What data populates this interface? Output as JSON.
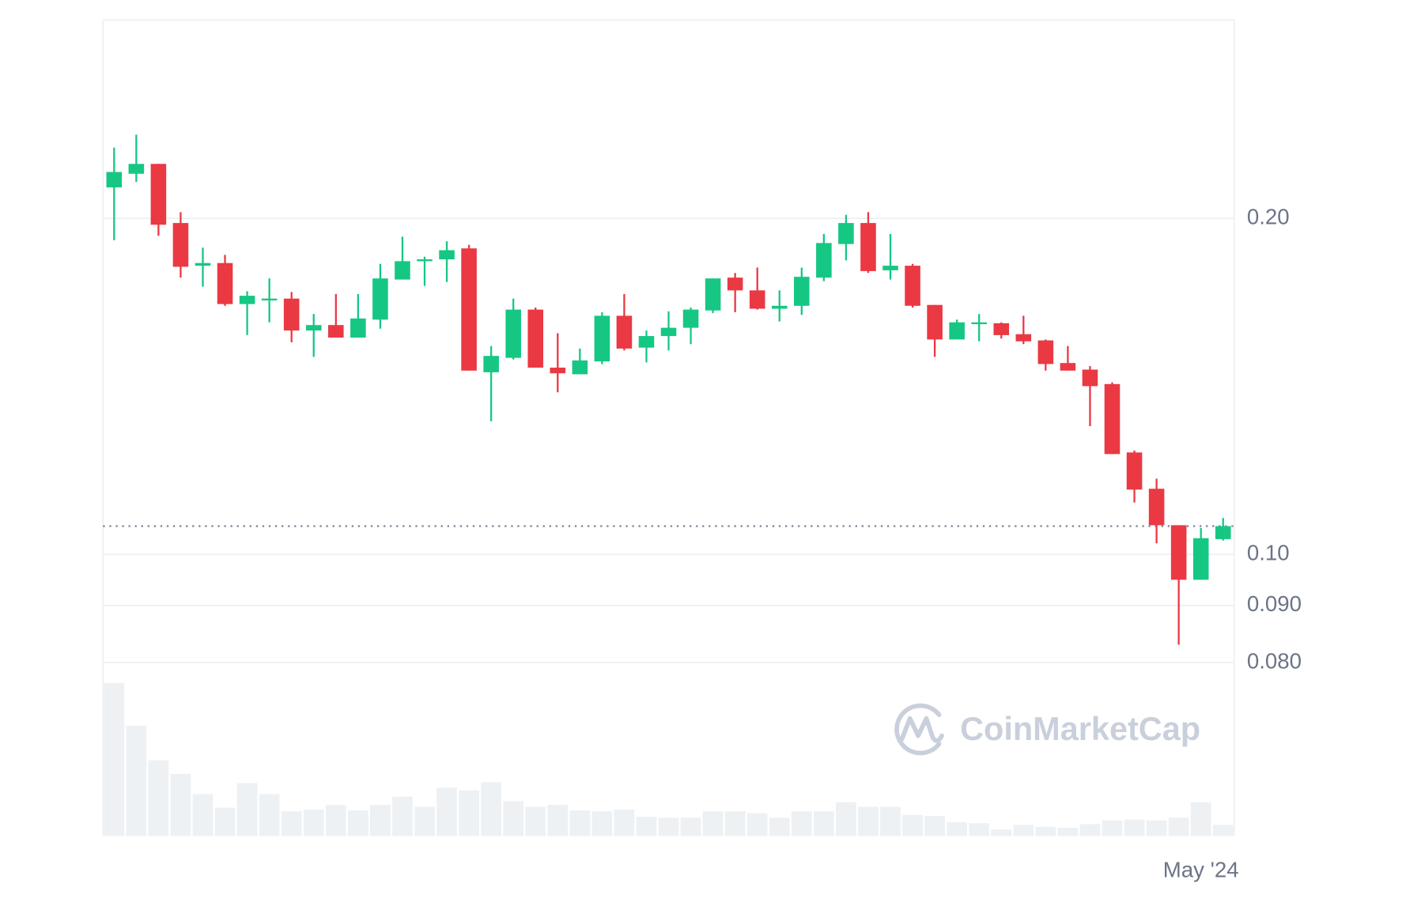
{
  "chart_data": {
    "type": "candlestick",
    "log_scale": true,
    "grid": true,
    "up_color": "#16c784",
    "down_color": "#ea3943",
    "watermark": "CoinMarketCap",
    "ylim": [
      0.075,
      0.3
    ],
    "yticks": [
      {
        "value": 0.2,
        "label": "0.20"
      },
      {
        "value": 0.1,
        "label": "0.10"
      },
      {
        "value": 0.09,
        "label": "0.090"
      },
      {
        "value": 0.08,
        "label": "0.080"
      }
    ],
    "categories": [
      null,
      null,
      null,
      null,
      null,
      null,
      null,
      null,
      null,
      null,
      null,
      null,
      null,
      null,
      null,
      null,
      null,
      null,
      null,
      null,
      null,
      null,
      null,
      null,
      null,
      null,
      null,
      null,
      null,
      null,
      null,
      null,
      null,
      null,
      null,
      null,
      null,
      null,
      null,
      null,
      null,
      null,
      null,
      null,
      null,
      null,
      null,
      null,
      null,
      "May '24",
      null
    ],
    "open": [
      0.2132,
      0.2193,
      0.2238,
      0.1981,
      0.1814,
      0.1824,
      0.1676,
      0.1695,
      0.1695,
      0.1587,
      0.1605,
      0.1564,
      0.1623,
      0.1763,
      0.1831,
      0.1838,
      0.188,
      0.1456,
      0.15,
      0.1657,
      0.147,
      0.145,
      0.1489,
      0.1636,
      0.1532,
      0.1569,
      0.1596,
      0.1654,
      0.177,
      0.1724,
      0.166,
      0.167,
      0.177,
      0.1897,
      0.1981,
      0.1797,
      0.1814,
      0.1673,
      0.1558,
      0.1611,
      0.1611,
      0.1575,
      0.1555,
      0.1484,
      0.1464,
      0.1421,
      0.1234,
      0.1145,
      0.1062,
      0.0949,
      0.1032
    ],
    "high": [
      0.2315,
      0.2377,
      0.2238,
      0.2026,
      0.1883,
      0.1855,
      0.1721,
      0.1767,
      0.1718,
      0.1642,
      0.1711,
      0.1711,
      0.1821,
      0.1926,
      0.1848,
      0.1908,
      0.1894,
      0.1537,
      0.1695,
      0.1664,
      0.1578,
      0.1529,
      0.1648,
      0.1711,
      0.1587,
      0.1651,
      0.1664,
      0.1767,
      0.1787,
      0.1807,
      0.1724,
      0.1807,
      0.1937,
      0.2015,
      0.2026,
      0.1937,
      0.1821,
      0.1673,
      0.1623,
      0.1642,
      0.1614,
      0.1636,
      0.1558,
      0.1537,
      0.1475,
      0.1426,
      0.1239,
      0.1169,
      0.1062,
      0.1056,
      0.1078
    ],
    "low": [
      0.1912,
      0.2156,
      0.193,
      0.177,
      0.1737,
      0.167,
      0.1572,
      0.1614,
      0.1549,
      0.1503,
      0.1564,
      0.1564,
      0.1593,
      0.1763,
      0.174,
      0.1754,
      0.1461,
      0.1316,
      0.1495,
      0.147,
      0.1397,
      0.145,
      0.1481,
      0.1523,
      0.1486,
      0.1523,
      0.1543,
      0.1645,
      0.1648,
      0.1657,
      0.1617,
      0.1639,
      0.1757,
      0.1834,
      0.1787,
      0.1763,
      0.1664,
      0.1503,
      0.1558,
      0.1552,
      0.1561,
      0.1543,
      0.1461,
      0.1461,
      0.1303,
      0.123,
      0.1113,
      0.1023,
      0.083,
      0.0949,
      0.1029
    ],
    "close": [
      0.2201,
      0.2238,
      0.1974,
      0.181,
      0.1824,
      0.1676,
      0.1705,
      0.1695,
      0.1587,
      0.1605,
      0.1564,
      0.1627,
      0.1767,
      0.1831,
      0.1838,
      0.1873,
      0.1461,
      0.1506,
      0.1657,
      0.147,
      0.1453,
      0.1492,
      0.1636,
      0.1529,
      0.1569,
      0.1596,
      0.1657,
      0.1767,
      0.1724,
      0.166,
      0.167,
      0.1773,
      0.1901,
      0.1981,
      0.1794,
      0.1814,
      0.167,
      0.1558,
      0.1614,
      0.1614,
      0.1572,
      0.1552,
      0.1481,
      0.1461,
      0.1415,
      0.123,
      0.1143,
      0.1062,
      0.0949,
      0.1034,
      0.106
    ],
    "volume": {
      "color": "#eef1f4",
      "ylim": [
        0,
        180
      ],
      "values": [
        168,
        121,
        83,
        68,
        46,
        31,
        58,
        46,
        27,
        29,
        34,
        28,
        34,
        43,
        32,
        53,
        50,
        59,
        38,
        32,
        34,
        28,
        27,
        29,
        21,
        20,
        20,
        27,
        27,
        25,
        20,
        27,
        27,
        37,
        32,
        32,
        23,
        22,
        15,
        14,
        7,
        12,
        10,
        9,
        13,
        17,
        18,
        17,
        20,
        37,
        12
      ]
    }
  }
}
